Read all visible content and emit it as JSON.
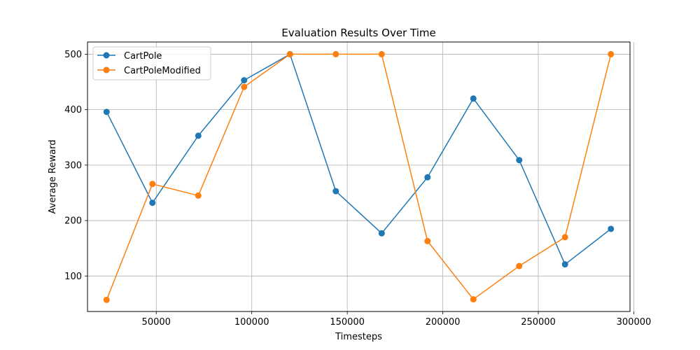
{
  "chart_data": {
    "type": "line",
    "title": "Evaluation Results Over Time",
    "xlabel": "Timesteps",
    "ylabel": "Average Reward",
    "x": [
      24000,
      48000,
      72000,
      96000,
      120000,
      144000,
      168000,
      192000,
      216000,
      240000,
      264000,
      288000
    ],
    "xlim": [
      14000,
      298000
    ],
    "ylim": [
      36,
      522
    ],
    "xticks": [
      50000,
      100000,
      150000,
      200000,
      250000,
      300000
    ],
    "xtick_labels": [
      "50000",
      "100000",
      "150000",
      "200000",
      "250000",
      "300000"
    ],
    "yticks": [
      100,
      200,
      300,
      400,
      500
    ],
    "ytick_labels": [
      "100",
      "200",
      "300",
      "400",
      "500"
    ],
    "grid": true,
    "legend_position": "top-left",
    "series": [
      {
        "name": "CartPole",
        "color": "#1f77b4",
        "values": [
          396,
          232,
          353,
          453,
          500,
          253,
          177,
          278,
          420,
          309,
          121,
          185
        ]
      },
      {
        "name": "CartPoleModified",
        "color": "#ff7f0e",
        "values": [
          57,
          266,
          245,
          441,
          500,
          500,
          500,
          163,
          58,
          118,
          170,
          500
        ]
      }
    ]
  }
}
